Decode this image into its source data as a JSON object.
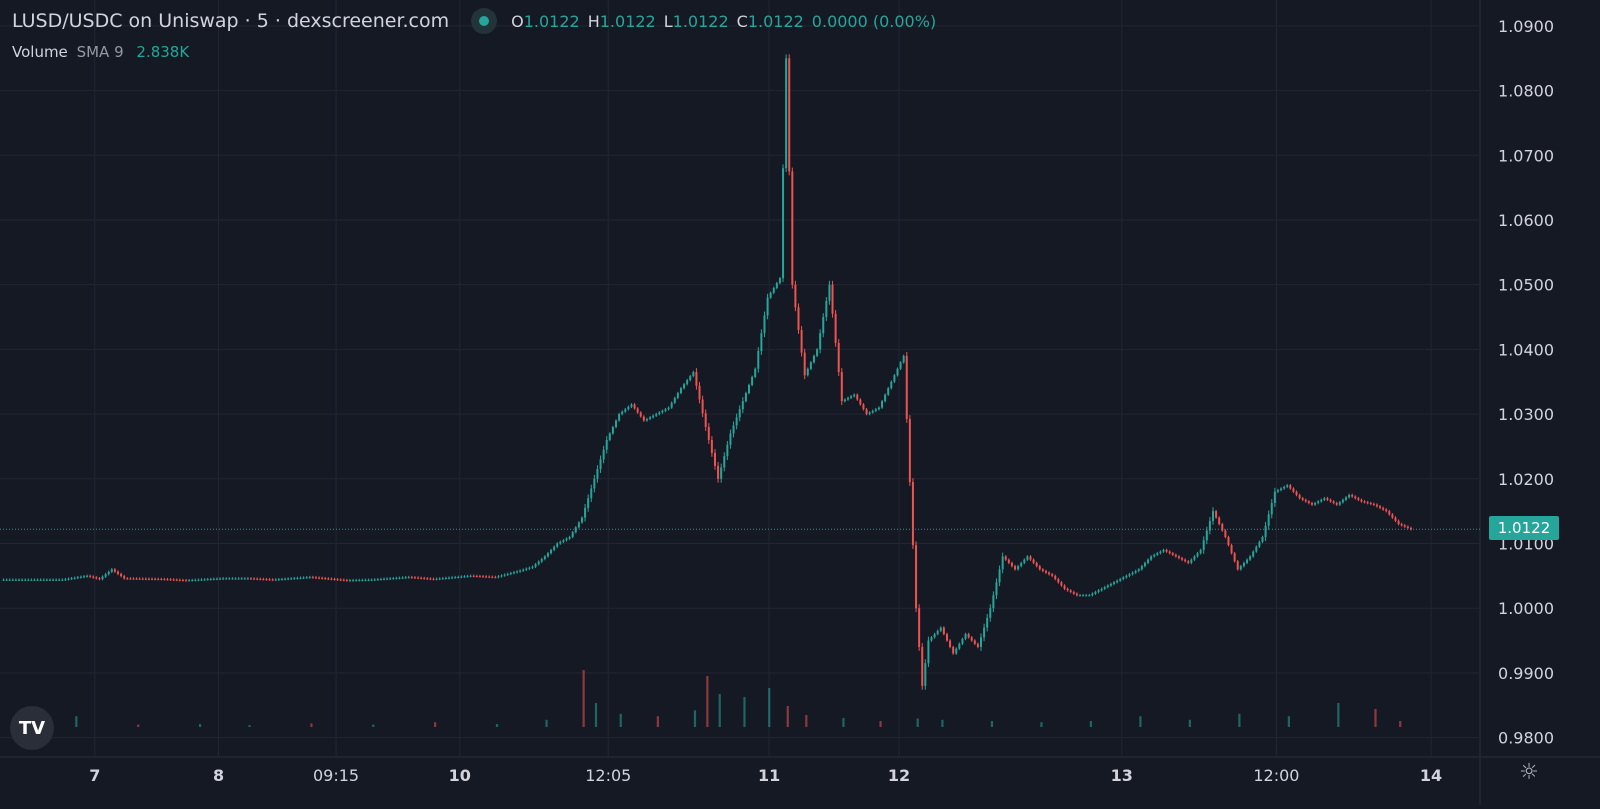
{
  "header": {
    "title": "LUSD/USDC on Uniswap · 5 · dexscreener.com",
    "ohlc": [
      {
        "label": "O",
        "value": "1.0122"
      },
      {
        "label": "H",
        "value": "1.0122"
      },
      {
        "label": "L",
        "value": "1.0122"
      },
      {
        "label": "C",
        "value": "1.0122"
      }
    ],
    "change": "0.0000 (0.00%)",
    "status_color": "#26a69a"
  },
  "volume_legend": {
    "label": "Volume",
    "indicator": "SMA 9",
    "value": "2.838K"
  },
  "price_tag": "1.0122",
  "logo": "TV",
  "icons": {
    "logo": "tradingview-logo-icon",
    "settings": "gear-icon"
  },
  "colors": {
    "background": "#151924",
    "grid": "#232632",
    "up": "#26a69a",
    "down": "#ef5350",
    "axis_text": "#d1d4dc",
    "price_line": "#26a69a"
  },
  "chart_data": {
    "type": "candlestick",
    "y_ticks": [
      "1.0900",
      "1.0800",
      "1.0700",
      "1.0600",
      "1.0500",
      "1.0400",
      "1.0300",
      "1.0200",
      "1.0100",
      "1.0000",
      "0.9900",
      "0.9800"
    ],
    "x_ticks": [
      "7",
      "8",
      "09:15",
      "10",
      "12:05",
      "11",
      "12",
      "13",
      "12:00",
      "14"
    ],
    "bold_x_ticks": [
      "7",
      "8",
      "10",
      "11",
      "12",
      "13",
      "14"
    ],
    "ylim": [
      0.977,
      1.094
    ],
    "current_price": 1.0122,
    "price_path": [
      [
        0,
        1.0044
      ],
      [
        5,
        1.0044
      ],
      [
        7,
        1.005
      ],
      [
        8,
        1.0045
      ],
      [
        9,
        1.006
      ],
      [
        10,
        1.0046
      ],
      [
        13,
        1.0045
      ],
      [
        15,
        1.0043
      ],
      [
        18,
        1.0046
      ],
      [
        20,
        1.0046
      ],
      [
        22,
        1.0044
      ],
      [
        25,
        1.0048
      ],
      [
        28,
        1.0043
      ],
      [
        30,
        1.0044
      ],
      [
        33,
        1.0048
      ],
      [
        35,
        1.0045
      ],
      [
        38,
        1.005
      ],
      [
        40,
        1.0048
      ],
      [
        42,
        1.0058
      ],
      [
        43,
        1.0064
      ],
      [
        44,
        1.008
      ],
      [
        45,
        1.01
      ],
      [
        46,
        1.011
      ],
      [
        47,
        1.014
      ],
      [
        48,
        1.02
      ],
      [
        49,
        1.026
      ],
      [
        50,
        1.03
      ],
      [
        51,
        1.0315
      ],
      [
        52,
        1.029
      ],
      [
        53,
        1.03
      ],
      [
        54,
        1.031
      ],
      [
        55,
        1.034
      ],
      [
        56,
        1.0365
      ],
      [
        57,
        1.028
      ],
      [
        58,
        1.02
      ],
      [
        59,
        1.027
      ],
      [
        60,
        1.032
      ],
      [
        61,
        1.037
      ],
      [
        62,
        1.048
      ],
      [
        63,
        1.051
      ],
      [
        63.5,
        1.085
      ],
      [
        64,
        1.05
      ],
      [
        65,
        1.036
      ],
      [
        66,
        1.04
      ],
      [
        67,
        1.05
      ],
      [
        68,
        1.032
      ],
      [
        69,
        1.033
      ],
      [
        70,
        1.03
      ],
      [
        71,
        1.031
      ],
      [
        72,
        1.035
      ],
      [
        73,
        1.039
      ],
      [
        74,
        1.0
      ],
      [
        74.5,
        0.988
      ],
      [
        75,
        0.995
      ],
      [
        76,
        0.997
      ],
      [
        77,
        0.993
      ],
      [
        78,
        0.996
      ],
      [
        79,
        0.994
      ],
      [
        80,
        1.0
      ],
      [
        81,
        1.008
      ],
      [
        82,
        1.006
      ],
      [
        83,
        1.008
      ],
      [
        84,
        1.006
      ],
      [
        85,
        1.005
      ],
      [
        86,
        1.003
      ],
      [
        87,
        1.002
      ],
      [
        88,
        1.002
      ],
      [
        89,
        1.003
      ],
      [
        90,
        1.004
      ],
      [
        91,
        1.005
      ],
      [
        92,
        1.006
      ],
      [
        93,
        1.008
      ],
      [
        94,
        1.009
      ],
      [
        95,
        1.008
      ],
      [
        96,
        1.007
      ],
      [
        97,
        1.009
      ],
      [
        98,
        1.015
      ],
      [
        99,
        1.011
      ],
      [
        100,
        1.006
      ],
      [
        101,
        1.008
      ],
      [
        102,
        1.011
      ],
      [
        103,
        1.018
      ],
      [
        104,
        1.019
      ],
      [
        105,
        1.017
      ],
      [
        106,
        1.016
      ],
      [
        107,
        1.017
      ],
      [
        108,
        1.016
      ],
      [
        109,
        1.0175
      ],
      [
        110,
        1.0165
      ],
      [
        111,
        1.016
      ],
      [
        112,
        1.015
      ],
      [
        113,
        1.013
      ],
      [
        114,
        1.0122
      ]
    ],
    "volume": [
      [
        1,
        0.03
      ],
      [
        6,
        0.18
      ],
      [
        11,
        0.04
      ],
      [
        16,
        0.05
      ],
      [
        20,
        0.03
      ],
      [
        25,
        0.06
      ],
      [
        30,
        0.04
      ],
      [
        35,
        0.08
      ],
      [
        40,
        0.05
      ],
      [
        44,
        0.12
      ],
      [
        47,
        0.95
      ],
      [
        48,
        0.4
      ],
      [
        50,
        0.22
      ],
      [
        53,
        0.18
      ],
      [
        56,
        0.28
      ],
      [
        57,
        0.85
      ],
      [
        58,
        0.55
      ],
      [
        60,
        0.5
      ],
      [
        62,
        0.65
      ],
      [
        63.5,
        0.35
      ],
      [
        65,
        0.2
      ],
      [
        68,
        0.15
      ],
      [
        71,
        0.1
      ],
      [
        74,
        0.14
      ],
      [
        76,
        0.12
      ],
      [
        80,
        0.1
      ],
      [
        84,
        0.08
      ],
      [
        88,
        0.1
      ],
      [
        92,
        0.18
      ],
      [
        96,
        0.12
      ],
      [
        100,
        0.22
      ],
      [
        104,
        0.18
      ],
      [
        108,
        0.4
      ],
      [
        111,
        0.3
      ],
      [
        113,
        0.1
      ]
    ]
  }
}
